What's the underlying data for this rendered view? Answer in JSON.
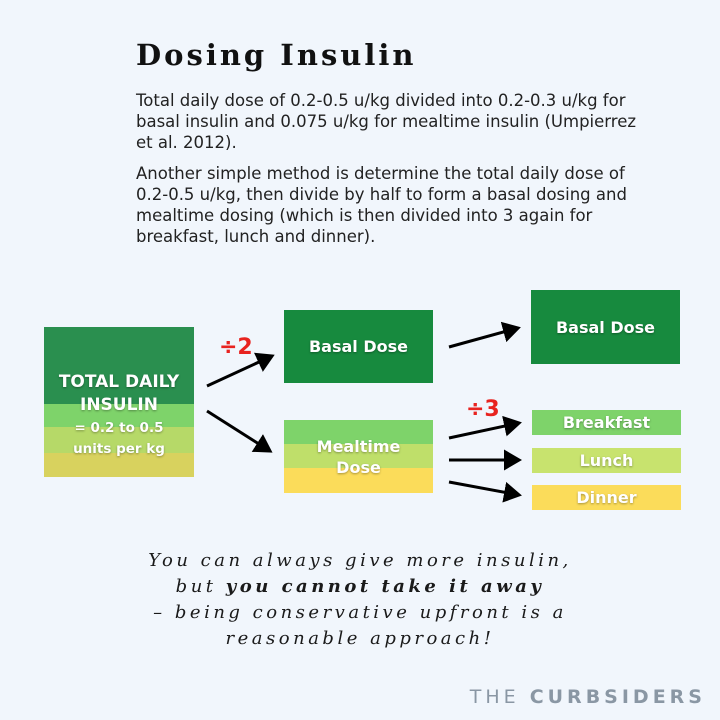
{
  "title": "Dosing Insulin",
  "paragraphs": [
    "Total daily dose of 0.2-0.5 u/kg divided into 0.2-0.3 u/kg for basal insulin and 0.075 u/kg for mealtime insulin (Umpierrez et al. 2012).",
    "Another simple method is determine the total daily dose of 0.2-0.5 u/kg, then divide by half to form a basal dosing and mealtime dosing (which is then divided into 3 again for breakfast, lunch and dinner)."
  ],
  "diagram": {
    "total": {
      "line1": "TOTAL DAILY",
      "line2": "INSULIN",
      "line3": "= 0.2 to 0.5",
      "line4": "units per kg"
    },
    "divide_by_two": "÷2",
    "divide_by_three": "÷3",
    "basal_dose": "Basal Dose",
    "mealtime": {
      "line1": "Mealtime",
      "line2": "Dose"
    },
    "basal_dose_right": "Basal Dose",
    "meals": [
      "Breakfast",
      "Lunch",
      "Dinner"
    ]
  },
  "quote": {
    "line1": "You can always give more insulin,",
    "line2_pre": "but ",
    "line2_bold": "you cannot take it away",
    "line3": "– being conservative upfront is a",
    "line4": "reasonable approach!"
  },
  "brand": {
    "part1": "THE",
    "part2": "CURBSIDERS"
  },
  "colors": {
    "dark_green": "#178a3e",
    "light_green": "#7ed36a",
    "yellow_green": "#c8e36e",
    "yellow": "#fbdc5a",
    "accent_red": "#e8231f"
  }
}
